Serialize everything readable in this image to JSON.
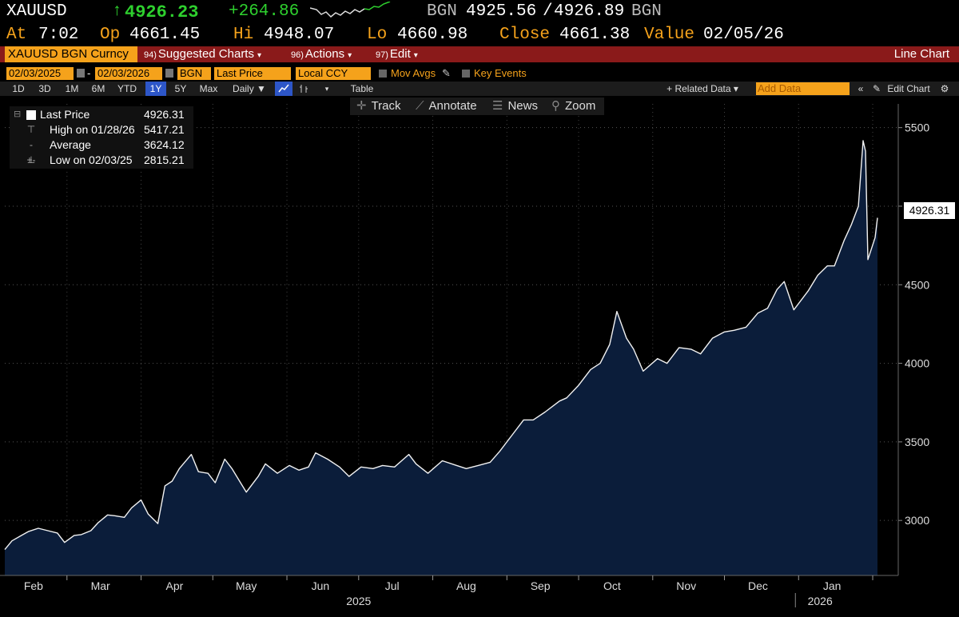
{
  "quote": {
    "ticker": "XAUUSD",
    "arrow": "↑",
    "last": "4926.23",
    "change": "+264.86",
    "bid_label": "BGN",
    "bid": "4925.56",
    "sep": "/",
    "ask": "4926.89",
    "ask_label": "BGN",
    "at_label": "At",
    "time": "7:02",
    "open_label": "Op",
    "open": "4661.45",
    "high_label": "Hi",
    "high": "4948.07",
    "low_label": "Lo",
    "low": "4660.98",
    "close_label": "Close",
    "close": "4661.38",
    "value_label": "Value",
    "value_date": "02/05/26"
  },
  "menubar": {
    "security": "XAUUSD BGN Curncy",
    "suggested": {
      "num": "94)",
      "label": "Suggested Charts",
      "arrow": "▾"
    },
    "actions": {
      "num": "96)",
      "label": "Actions",
      "arrow": "▾"
    },
    "edit": {
      "num": "97)",
      "label": "Edit",
      "arrow": "▾"
    },
    "chart_type": "Line Chart"
  },
  "controls": {
    "start_date": "02/03/2025",
    "dash": "-",
    "end_date": "02/03/2026",
    "source": "BGN",
    "field": "Last Price",
    "currency": "Local CCY",
    "mov_avgs": "Mov Avgs",
    "key_events": "Key Events"
  },
  "periods": [
    "1D",
    "3D",
    "1M",
    "6M",
    "YTD",
    "1Y",
    "5Y",
    "Max"
  ],
  "active_period": "1Y",
  "toolbar": {
    "frequency": "Daily ▼",
    "table": "Table",
    "related": "+ Related Data ▾",
    "add_data_placeholder": "Add Data",
    "collapse": "«",
    "edit_chart": "Edit Chart",
    "settings_icon": "⚙"
  },
  "tools": {
    "track": "Track",
    "annotate": "Annotate",
    "news": "News",
    "zoom": "Zoom"
  },
  "legend": {
    "last_label": "Last Price",
    "last_value": "4926.31",
    "high_label": "High on 01/28/26",
    "high_value": "5417.21",
    "avg_label": "Average",
    "avg_value": "3624.12",
    "low_label": "Low on 02/03/25",
    "low_value": "2815.21"
  },
  "price_tag": "4926.31",
  "colors": {
    "accent_orange": "#f5a21b",
    "menu_red": "#8a1a1a",
    "area_fill": "#0b1d3a",
    "up_green": "#2ed02e",
    "active_tab": "#2d56c8"
  },
  "chart_data": {
    "type": "area",
    "ylim": [
      2650,
      5600
    ],
    "yticks": [
      3000,
      3500,
      4000,
      4500,
      5000,
      5500
    ],
    "x_start": "2025-02-03",
    "x_end": "2026-02-03",
    "month_labels": [
      {
        "label": "Feb",
        "date": "2025-02-15"
      },
      {
        "label": "Mar",
        "date": "2025-03-15"
      },
      {
        "label": "Apr",
        "date": "2025-04-15"
      },
      {
        "label": "May",
        "date": "2025-05-15"
      },
      {
        "label": "Jun",
        "date": "2025-06-15"
      },
      {
        "label": "Jul",
        "date": "2025-07-15"
      },
      {
        "label": "Aug",
        "date": "2025-08-15"
      },
      {
        "label": "Sep",
        "date": "2025-09-15"
      },
      {
        "label": "Oct",
        "date": "2025-10-15"
      },
      {
        "label": "Nov",
        "date": "2025-11-15"
      },
      {
        "label": "Dec",
        "date": "2025-12-15"
      },
      {
        "label": "Jan",
        "date": "2026-01-15"
      }
    ],
    "year_labels": [
      {
        "label": "2025",
        "date": "2025-07-01"
      },
      {
        "label": "2026",
        "date": "2026-01-10"
      }
    ],
    "year_divider": "2026-01-01",
    "x": [
      "2025-02-03",
      "2025-02-06",
      "2025-02-10",
      "2025-02-13",
      "2025-02-17",
      "2025-02-21",
      "2025-02-25",
      "2025-02-28",
      "2025-03-04",
      "2025-03-07",
      "2025-03-11",
      "2025-03-14",
      "2025-03-18",
      "2025-03-21",
      "2025-03-25",
      "2025-03-28",
      "2025-04-01",
      "2025-04-04",
      "2025-04-08",
      "2025-04-11",
      "2025-04-14",
      "2025-04-17",
      "2025-04-22",
      "2025-04-25",
      "2025-04-29",
      "2025-05-02",
      "2025-05-06",
      "2025-05-09",
      "2025-05-13",
      "2025-05-15",
      "2025-05-20",
      "2025-05-23",
      "2025-05-28",
      "2025-06-02",
      "2025-06-06",
      "2025-06-10",
      "2025-06-13",
      "2025-06-18",
      "2025-06-23",
      "2025-06-27",
      "2025-07-02",
      "2025-07-07",
      "2025-07-11",
      "2025-07-16",
      "2025-07-22",
      "2025-07-25",
      "2025-07-30",
      "2025-08-05",
      "2025-08-11",
      "2025-08-15",
      "2025-08-20",
      "2025-08-25",
      "2025-08-29",
      "2025-09-03",
      "2025-09-08",
      "2025-09-12",
      "2025-09-17",
      "2025-09-23",
      "2025-09-26",
      "2025-10-01",
      "2025-10-06",
      "2025-10-10",
      "2025-10-14",
      "2025-10-17",
      "2025-10-21",
      "2025-10-24",
      "2025-10-28",
      "2025-11-03",
      "2025-11-07",
      "2025-11-12",
      "2025-11-17",
      "2025-11-21",
      "2025-11-26",
      "2025-12-01",
      "2025-12-05",
      "2025-12-10",
      "2025-12-15",
      "2025-12-19",
      "2025-12-23",
      "2025-12-26",
      "2025-12-30",
      "2026-01-05",
      "2026-01-09",
      "2026-01-13",
      "2026-01-16",
      "2026-01-20",
      "2026-01-23",
      "2026-01-26",
      "2026-01-28",
      "2026-01-29",
      "2026-01-30",
      "2026-02-02",
      "2026-02-03"
    ],
    "values": [
      2815,
      2870,
      2905,
      2930,
      2950,
      2935,
      2920,
      2860,
      2905,
      2910,
      2935,
      2985,
      3035,
      3030,
      3020,
      3080,
      3130,
      3040,
      2980,
      3220,
      3250,
      3330,
      3420,
      3310,
      3300,
      3240,
      3390,
      3330,
      3230,
      3180,
      3280,
      3360,
      3300,
      3350,
      3320,
      3340,
      3430,
      3390,
      3340,
      3280,
      3340,
      3330,
      3350,
      3340,
      3420,
      3360,
      3300,
      3380,
      3350,
      3330,
      3350,
      3370,
      3440,
      3540,
      3640,
      3640,
      3690,
      3760,
      3780,
      3860,
      3960,
      4000,
      4120,
      4330,
      4160,
      4090,
      3950,
      4030,
      4000,
      4100,
      4090,
      4060,
      4160,
      4200,
      4210,
      4230,
      4320,
      4350,
      4470,
      4520,
      4340,
      4460,
      4560,
      4620,
      4620,
      4780,
      4880,
      5000,
      5417,
      5350,
      4660,
      4800,
      4926
    ]
  }
}
